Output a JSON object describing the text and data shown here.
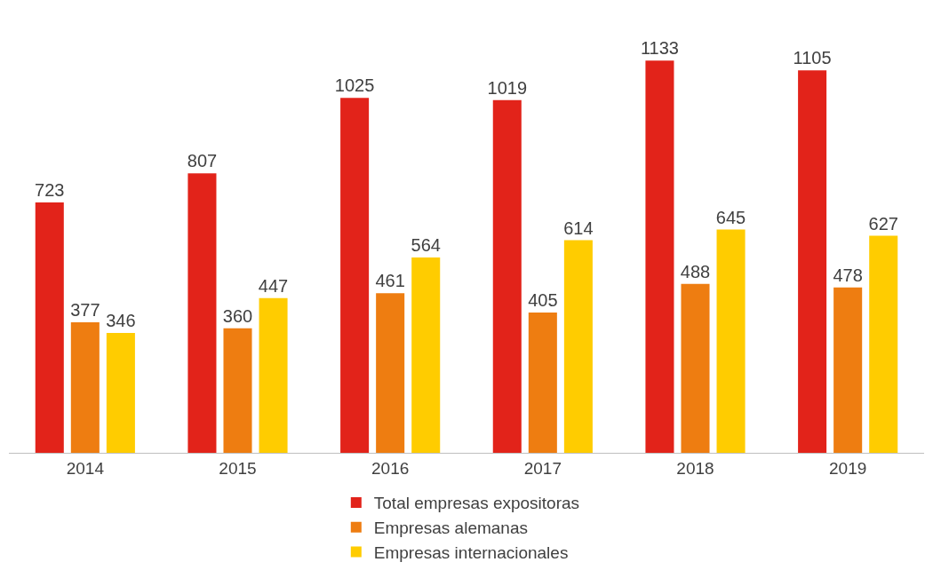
{
  "chart_data": {
    "type": "bar",
    "categories": [
      "2014",
      "2015",
      "2016",
      "2017",
      "2018",
      "2019"
    ],
    "series": [
      {
        "name": "Total empresas expositoras",
        "color": "#e2231a",
        "values": [
          723,
          807,
          1025,
          1019,
          1133,
          1105
        ]
      },
      {
        "name": "Empresas alemanas",
        "color": "#ee7d11",
        "values": [
          377,
          360,
          461,
          405,
          488,
          478
        ]
      },
      {
        "name": "Empresas internacionales",
        "color": "#ffcc00",
        "values": [
          346,
          447,
          564,
          614,
          645,
          627
        ]
      }
    ],
    "data_labels": true,
    "legend": "bottom",
    "tick_labels": "x"
  }
}
